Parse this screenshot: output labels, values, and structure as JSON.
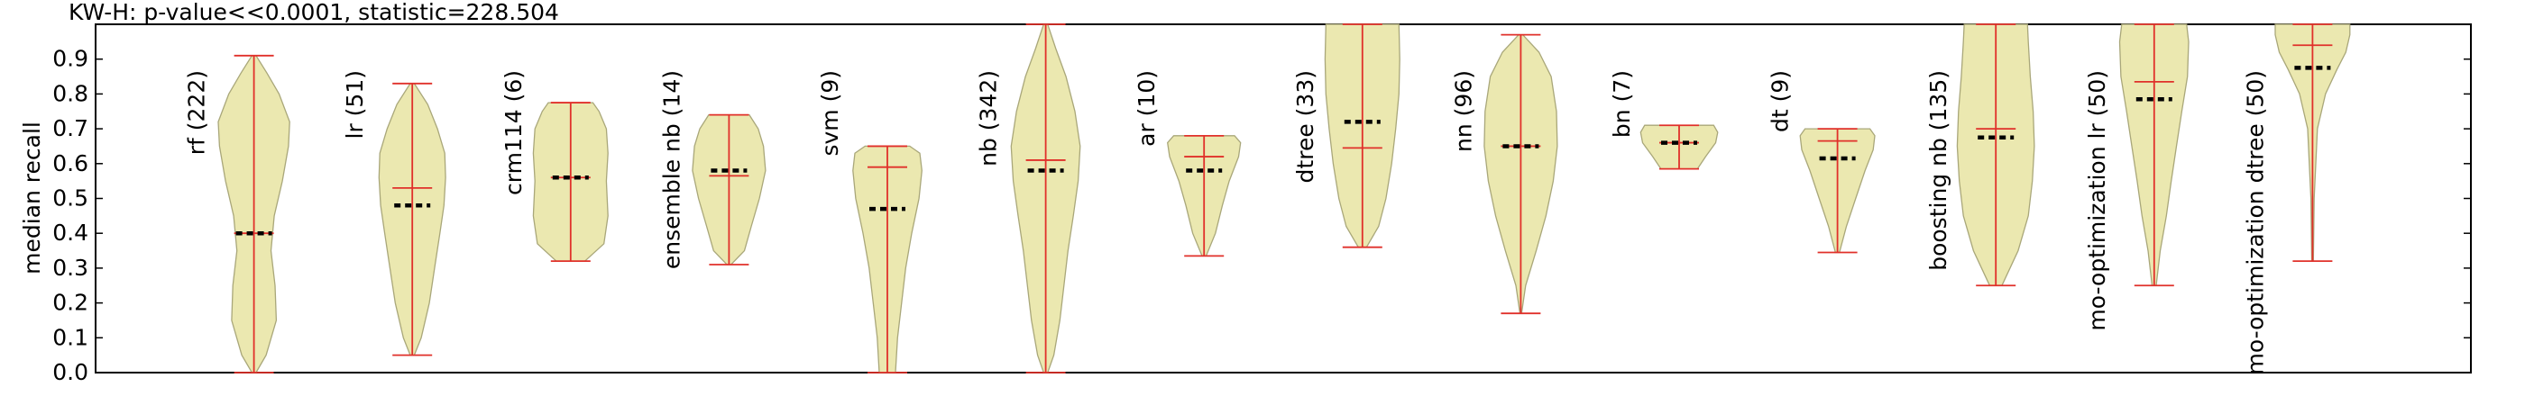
{
  "chart_data": {
    "type": "violin",
    "title": "KW-H: p-value<<0.0001, statistic=228.504",
    "ylabel": "median recall",
    "xlabel": "",
    "ylim": [
      0,
      1.0
    ],
    "yticks": [
      "0.0",
      "0.1",
      "0.2",
      "0.3",
      "0.4",
      "0.5",
      "0.6",
      "0.7",
      "0.8",
      "0.9"
    ],
    "grid": false,
    "colors": {
      "violin_fill": "#ebe8b0",
      "violin_edge": "#a9a77a",
      "whisker": "#e0302a",
      "median_dash": "#000000"
    },
    "series": [
      {
        "label": "rf (222)",
        "min": 0.0,
        "max": 0.91,
        "mean": 0.4,
        "median": 0.4,
        "shape": [
          [
            0.0,
            0.05
          ],
          [
            0.05,
            0.3
          ],
          [
            0.15,
            0.55
          ],
          [
            0.25,
            0.52
          ],
          [
            0.35,
            0.42
          ],
          [
            0.45,
            0.5
          ],
          [
            0.55,
            0.7
          ],
          [
            0.65,
            0.85
          ],
          [
            0.72,
            0.88
          ],
          [
            0.8,
            0.62
          ],
          [
            0.86,
            0.32
          ],
          [
            0.91,
            0.05
          ]
        ]
      },
      {
        "label": "lr (51)",
        "min": 0.05,
        "max": 0.83,
        "mean": 0.53,
        "median": 0.48,
        "shape": [
          [
            0.05,
            0.05
          ],
          [
            0.1,
            0.22
          ],
          [
            0.2,
            0.42
          ],
          [
            0.3,
            0.55
          ],
          [
            0.4,
            0.68
          ],
          [
            0.48,
            0.78
          ],
          [
            0.56,
            0.82
          ],
          [
            0.63,
            0.8
          ],
          [
            0.7,
            0.62
          ],
          [
            0.77,
            0.38
          ],
          [
            0.83,
            0.05
          ]
        ]
      },
      {
        "label": "crm114 (6)",
        "min": 0.32,
        "max": 0.775,
        "mean": 0.56,
        "median": 0.56,
        "shape": [
          [
            0.32,
            0.35
          ],
          [
            0.37,
            0.82
          ],
          [
            0.45,
            0.92
          ],
          [
            0.55,
            0.88
          ],
          [
            0.63,
            0.92
          ],
          [
            0.7,
            0.88
          ],
          [
            0.75,
            0.7
          ],
          [
            0.775,
            0.55
          ]
        ]
      },
      {
        "label": "ensemble nb (14)",
        "min": 0.31,
        "max": 0.74,
        "mean": 0.565,
        "median": 0.58,
        "shape": [
          [
            0.31,
            0.05
          ],
          [
            0.35,
            0.38
          ],
          [
            0.42,
            0.55
          ],
          [
            0.5,
            0.75
          ],
          [
            0.58,
            0.9
          ],
          [
            0.65,
            0.85
          ],
          [
            0.7,
            0.72
          ],
          [
            0.74,
            0.5
          ]
        ]
      },
      {
        "label": "svm (9)",
        "min": 0.0,
        "max": 0.65,
        "mean": 0.59,
        "median": 0.47,
        "shape": [
          [
            0.0,
            0.2
          ],
          [
            0.1,
            0.25
          ],
          [
            0.2,
            0.35
          ],
          [
            0.3,
            0.45
          ],
          [
            0.4,
            0.6
          ],
          [
            0.5,
            0.78
          ],
          [
            0.58,
            0.85
          ],
          [
            0.63,
            0.8
          ],
          [
            0.65,
            0.55
          ]
        ]
      },
      {
        "label": "nb (342)",
        "min": 0.0,
        "max": 1.0,
        "mean": 0.61,
        "median": 0.58,
        "shape": [
          [
            0.0,
            0.05
          ],
          [
            0.05,
            0.2
          ],
          [
            0.15,
            0.35
          ],
          [
            0.25,
            0.45
          ],
          [
            0.35,
            0.55
          ],
          [
            0.45,
            0.68
          ],
          [
            0.55,
            0.8
          ],
          [
            0.65,
            0.85
          ],
          [
            0.75,
            0.72
          ],
          [
            0.85,
            0.5
          ],
          [
            0.93,
            0.25
          ],
          [
            1.0,
            0.05
          ]
        ]
      },
      {
        "label": "ar (10)",
        "min": 0.335,
        "max": 0.68,
        "mean": 0.62,
        "median": 0.58,
        "shape": [
          [
            0.335,
            0.05
          ],
          [
            0.4,
            0.28
          ],
          [
            0.48,
            0.45
          ],
          [
            0.55,
            0.62
          ],
          [
            0.62,
            0.85
          ],
          [
            0.66,
            0.9
          ],
          [
            0.68,
            0.75
          ]
        ]
      },
      {
        "label": "dtree (33)",
        "min": 0.36,
        "max": 1.0,
        "mean": 0.645,
        "median": 0.72,
        "shape": [
          [
            0.36,
            0.1
          ],
          [
            0.42,
            0.4
          ],
          [
            0.5,
            0.58
          ],
          [
            0.6,
            0.72
          ],
          [
            0.7,
            0.82
          ],
          [
            0.8,
            0.9
          ],
          [
            0.9,
            0.92
          ],
          [
            1.0,
            0.9
          ]
        ]
      },
      {
        "label": "nn (96)",
        "min": 0.17,
        "max": 0.97,
        "mean": 0.65,
        "median": 0.65,
        "shape": [
          [
            0.17,
            0.02
          ],
          [
            0.25,
            0.12
          ],
          [
            0.35,
            0.38
          ],
          [
            0.45,
            0.62
          ],
          [
            0.55,
            0.8
          ],
          [
            0.65,
            0.9
          ],
          [
            0.75,
            0.88
          ],
          [
            0.85,
            0.75
          ],
          [
            0.92,
            0.45
          ],
          [
            0.97,
            0.05
          ]
        ]
      },
      {
        "label": "bn (7)",
        "min": 0.585,
        "max": 0.71,
        "mean": 0.66,
        "median": 0.66,
        "shape": [
          [
            0.585,
            0.45
          ],
          [
            0.62,
            0.65
          ],
          [
            0.66,
            0.9
          ],
          [
            0.69,
            0.95
          ],
          [
            0.71,
            0.85
          ]
        ]
      },
      {
        "label": "dt (9)",
        "min": 0.345,
        "max": 0.7,
        "mean": 0.665,
        "median": 0.615,
        "shape": [
          [
            0.345,
            0.05
          ],
          [
            0.42,
            0.22
          ],
          [
            0.5,
            0.45
          ],
          [
            0.58,
            0.68
          ],
          [
            0.64,
            0.88
          ],
          [
            0.68,
            0.92
          ],
          [
            0.7,
            0.8
          ]
        ]
      },
      {
        "label": "boosting nb (135)",
        "min": 0.25,
        "max": 1.0,
        "mean": 0.7,
        "median": 0.675,
        "shape": [
          [
            0.25,
            0.15
          ],
          [
            0.35,
            0.55
          ],
          [
            0.45,
            0.8
          ],
          [
            0.55,
            0.9
          ],
          [
            0.65,
            0.95
          ],
          [
            0.75,
            0.92
          ],
          [
            0.85,
            0.85
          ],
          [
            0.95,
            0.8
          ],
          [
            1.0,
            0.78
          ]
        ]
      },
      {
        "label": "mo-optimization lr (50)",
        "min": 0.25,
        "max": 1.0,
        "mean": 0.835,
        "median": 0.785,
        "shape": [
          [
            0.25,
            0.05
          ],
          [
            0.35,
            0.15
          ],
          [
            0.45,
            0.3
          ],
          [
            0.55,
            0.42
          ],
          [
            0.65,
            0.55
          ],
          [
            0.75,
            0.68
          ],
          [
            0.85,
            0.82
          ],
          [
            0.95,
            0.85
          ],
          [
            1.0,
            0.8
          ]
        ]
      },
      {
        "label": "mo-optimization dtree (50)",
        "min": 0.32,
        "max": 1.0,
        "mean": 0.94,
        "median": 0.875,
        "shape": [
          [
            0.32,
            0.02
          ],
          [
            0.5,
            0.04
          ],
          [
            0.7,
            0.12
          ],
          [
            0.8,
            0.32
          ],
          [
            0.87,
            0.6
          ],
          [
            0.92,
            0.82
          ],
          [
            0.97,
            0.92
          ],
          [
            1.0,
            0.92
          ]
        ]
      }
    ]
  }
}
